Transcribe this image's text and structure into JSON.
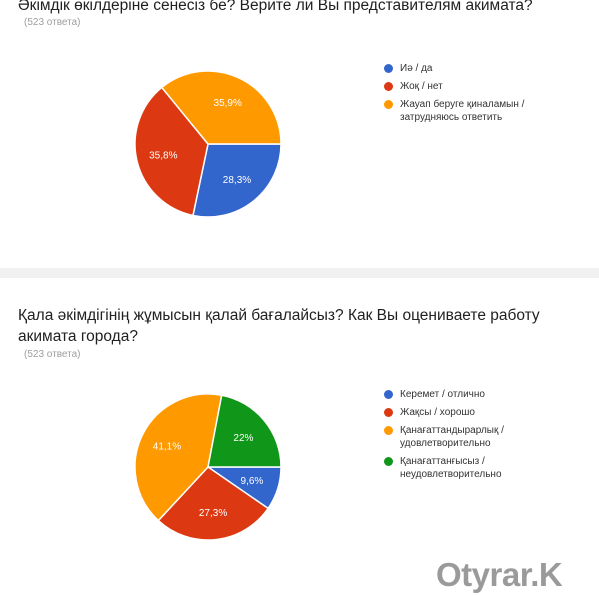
{
  "colors": {
    "blue": "#3366cc",
    "red": "#dc3912",
    "orange": "#ff9900",
    "green": "#109618"
  },
  "chart_data": [
    {
      "type": "pie",
      "title": "Әкімдік өкілдеріне сенесіз бе? Верите ли Вы представителям акимата?",
      "responses": "(523 ответа)",
      "slices": [
        {
          "label": "Иә / да",
          "value": 28.3,
          "display": "28,3%",
          "color": "#3366cc"
        },
        {
          "label": "Жоқ / нет",
          "value": 35.8,
          "display": "35,8%",
          "color": "#dc3912"
        },
        {
          "label": "Жауап беруге қиналамын / затрудняюсь ответить",
          "value": 35.9,
          "display": "35,9%",
          "color": "#ff9900"
        }
      ],
      "legend_position": "right"
    },
    {
      "type": "pie",
      "title": "Қала әкімдігінің жұмысын қалай бағалайсыз? Как Вы оцениваете работу акимата города?",
      "responses": "(523 ответа)",
      "slices": [
        {
          "label": "Керемет / отлично",
          "value": 9.6,
          "display": "9,6%",
          "color": "#3366cc"
        },
        {
          "label": "Жақсы / хорошо",
          "value": 27.3,
          "display": "27,3%",
          "color": "#dc3912"
        },
        {
          "label": "Қанағаттандырарлық / удовлетворительно",
          "value": 41.1,
          "display": "41,1%",
          "color": "#ff9900"
        },
        {
          "label": "Қанағаттанғысыз / неудовлетворительно",
          "value": 22,
          "display": "22%",
          "color": "#109618"
        }
      ],
      "legend_position": "right"
    }
  ],
  "watermark": "Otyrar.K"
}
